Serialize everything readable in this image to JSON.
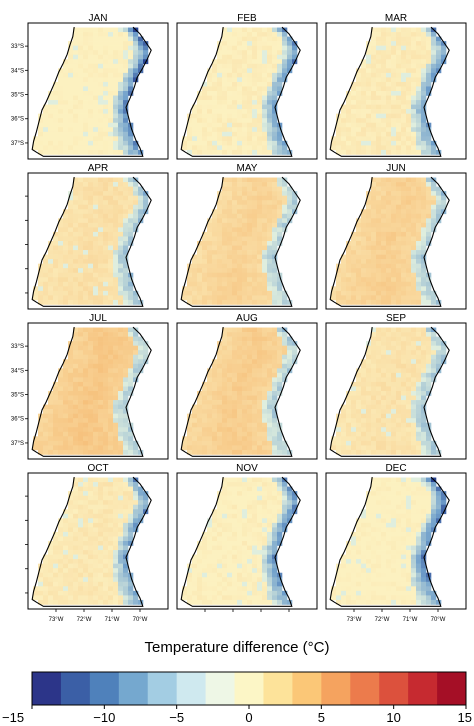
{
  "figure": {
    "months": [
      "JAN",
      "FEB",
      "MAR",
      "APR",
      "MAY",
      "JUN",
      "JUL",
      "AUG",
      "SEP",
      "OCT",
      "NOV",
      "DEC"
    ],
    "lat_labels": [
      "33°S",
      "34°S",
      "35°S",
      "36°S",
      "37°S"
    ],
    "lon_labels": [
      "73°W",
      "72°W",
      "71°W",
      "70°W"
    ],
    "month_intensity": [
      0.0,
      0.08,
      0.15,
      0.35,
      0.55,
      0.6,
      0.75,
      0.65,
      0.3,
      0.2,
      0.05,
      0.0
    ],
    "east_cold_strength": [
      1.0,
      0.8,
      0.8,
      0.5,
      0.35,
      0.4,
      0.35,
      0.35,
      0.45,
      0.75,
      0.85,
      0.95
    ]
  },
  "colorbar": {
    "title": "Temperature difference (°C)",
    "ticks": [
      "−15",
      "−10",
      "−5",
      "0",
      "5",
      "10",
      "15"
    ],
    "colors": [
      "#2c3589",
      "#3b5fa6",
      "#4f81bb",
      "#75a8cf",
      "#a3cde3",
      "#cfe9ef",
      "#eef7e6",
      "#fcf6c6",
      "#fde39a",
      "#fbc777",
      "#f5a35f",
      "#ec7b4c",
      "#dc513d",
      "#c62a30",
      "#a50f26"
    ]
  }
}
